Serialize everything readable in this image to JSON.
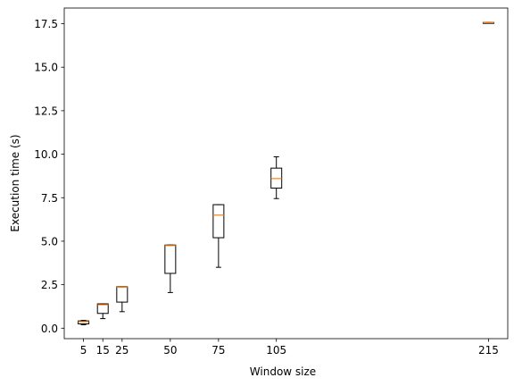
{
  "chart_data": {
    "type": "box",
    "title": "",
    "xlabel": "Window size",
    "ylabel": "Execution time (s)",
    "xlim": [
      -5,
      225
    ],
    "ylim": [
      -0.6,
      18.4
    ],
    "x_ticks": [
      5,
      15,
      25,
      50,
      75,
      105,
      215
    ],
    "y_ticks": [
      0.0,
      2.5,
      5.0,
      7.5,
      10.0,
      12.5,
      15.0,
      17.5
    ],
    "y_tick_labels": [
      "0.0",
      "2.5",
      "5.0",
      "7.5",
      "10.0",
      "12.5",
      "15.0",
      "17.5"
    ],
    "colors": {
      "box": "#000000",
      "median": "#ff7f0e"
    },
    "boxes": [
      {
        "x": 5,
        "whisker_low": 0.2,
        "q1": 0.25,
        "median": 0.38,
        "q3": 0.42,
        "whisker_high": 0.45
      },
      {
        "x": 15,
        "whisker_low": 0.55,
        "q1": 0.85,
        "median": 1.35,
        "q3": 1.4,
        "whisker_high": 1.4
      },
      {
        "x": 25,
        "whisker_low": 0.95,
        "q1": 1.5,
        "median": 2.35,
        "q3": 2.38,
        "whisker_high": 2.38
      },
      {
        "x": 50,
        "whisker_low": 2.05,
        "q1": 3.15,
        "median": 4.75,
        "q3": 4.78,
        "whisker_high": 4.78
      },
      {
        "x": 75,
        "whisker_low": 3.5,
        "q1": 5.2,
        "median": 6.5,
        "q3": 7.1,
        "whisker_high": 7.1
      },
      {
        "x": 105,
        "whisker_low": 7.45,
        "q1": 8.05,
        "median": 8.6,
        "q3": 9.2,
        "whisker_high": 9.85
      },
      {
        "x": 215,
        "whisker_low": 17.55,
        "q1": 17.55,
        "median": 17.56,
        "q3": 17.57,
        "whisker_high": 17.57
      }
    ]
  }
}
